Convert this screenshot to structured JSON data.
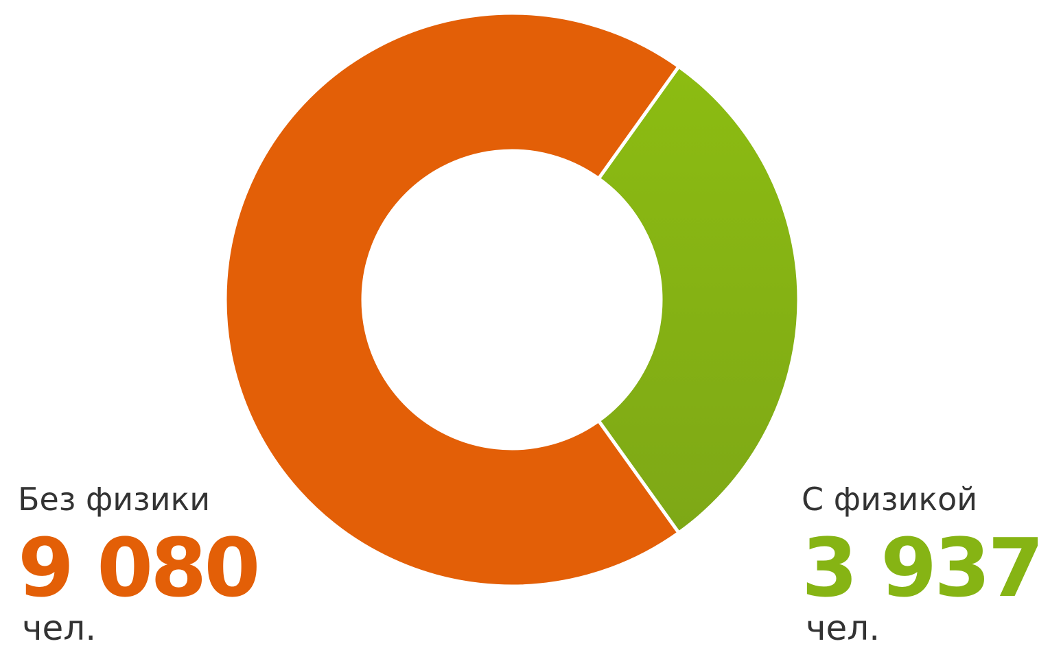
{
  "chart_data": {
    "type": "pie",
    "variant": "donut",
    "title": "",
    "categories": [
      "Без физики",
      "С физикой"
    ],
    "values": [
      9080,
      3937
    ],
    "value_labels": [
      "9 080",
      "3 937"
    ],
    "unit": "чел.",
    "colors": [
      "#e35f07",
      "#86b414"
    ],
    "legend_placement": "bottom-left and bottom-right"
  },
  "legend": {
    "left": {
      "label": "Без физики",
      "value": "9 080",
      "unit": "чел.",
      "color": "#e35f07"
    },
    "right": {
      "label": "С физикой",
      "value": "3 937",
      "unit": "чел.",
      "color": "#86b414"
    }
  }
}
